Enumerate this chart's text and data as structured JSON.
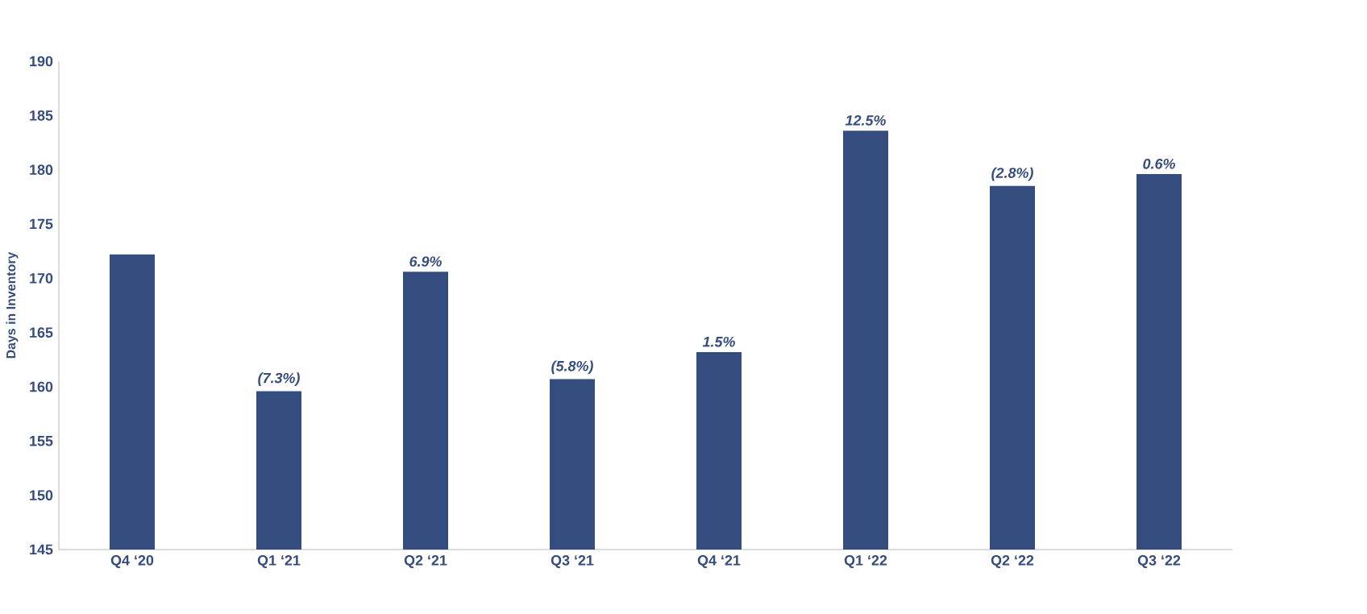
{
  "chart_data": {
    "type": "bar",
    "ylabel": "Days in Inventory",
    "categories": [
      "Q4 ‘20",
      "Q1 ‘21",
      "Q2 ‘21",
      "Q3 ‘21",
      "Q4 ‘21",
      "Q1 ‘22",
      "Q2 ‘22",
      "Q3 ‘22"
    ],
    "values": [
      172.2,
      159.6,
      170.6,
      160.7,
      163.2,
      183.6,
      178.5,
      179.6
    ],
    "annotations": [
      {
        "text": "(7.3%)",
        "x": "Q1 ‘21",
        "y": 159.6
      },
      {
        "text": "6.9%",
        "x": "Q2 ‘21",
        "y": 170.6
      },
      {
        "text": "(5.8%)",
        "x": "Q3 ‘21",
        "y": 160.7
      },
      {
        "text": "1.5%",
        "x": "Q4 ‘21",
        "y": 163.2
      },
      {
        "text": "12.5%",
        "x": "Q1 ‘22",
        "y": 183.6
      },
      {
        "text": "(2.8%)",
        "x": "Q2 ‘22",
        "y": 178.5
      },
      {
        "text": "0.6%",
        "x": "Q3 ‘22",
        "y": 179.6
      }
    ],
    "color": "#344c7e",
    "ylim": [
      145,
      190
    ],
    "yticks": [
      145,
      150,
      155,
      160,
      165,
      170,
      175,
      180,
      185,
      190
    ]
  }
}
